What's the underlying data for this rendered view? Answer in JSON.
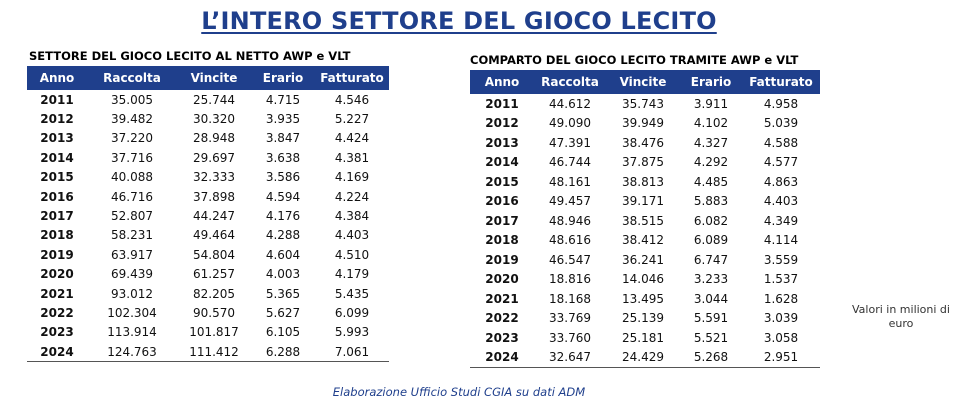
{
  "title": "L’INTERO SETTORE DEL GIOCO LECITO",
  "left_table": {
    "subtitle": "SETTORE DEL GIOCO LECITO AL NETTO AWP e VLT",
    "headers": [
      "Anno",
      "Raccolta",
      "Vincite",
      "Erario",
      "Fatturato"
    ],
    "rows": [
      [
        "2011",
        "35.005",
        "25.744",
        "4.715",
        "4.546"
      ],
      [
        "2012",
        "39.482",
        "30.320",
        "3.935",
        "5.227"
      ],
      [
        "2013",
        "37.220",
        "28.948",
        "3.847",
        "4.424"
      ],
      [
        "2014",
        "37.716",
        "29.697",
        "3.638",
        "4.381"
      ],
      [
        "2015",
        "40.088",
        "32.333",
        "3.586",
        "4.169"
      ],
      [
        "2016",
        "46.716",
        "37.898",
        "4.594",
        "4.224"
      ],
      [
        "2017",
        "52.807",
        "44.247",
        "4.176",
        "4.384"
      ],
      [
        "2018",
        "58.231",
        "49.464",
        "4.288",
        "4.403"
      ],
      [
        "2019",
        "63.917",
        "54.804",
        "4.604",
        "4.510"
      ],
      [
        "2020",
        "69.439",
        "61.257",
        "4.003",
        "4.179"
      ],
      [
        "2021",
        "93.012",
        "82.205",
        "5.365",
        "5.435"
      ],
      [
        "2022",
        "102.304",
        "90.570",
        "5.627",
        "6.099"
      ],
      [
        "2023",
        "113.914",
        "101.817",
        "6.105",
        "5.993"
      ],
      [
        "2024",
        "124.763",
        "111.412",
        "6.288",
        "7.061"
      ]
    ]
  },
  "right_table": {
    "subtitle": "COMPARTO DEL GIOCO LECITO TRAMITE AWP e VLT",
    "headers": [
      "Anno",
      "Raccolta",
      "Vincite",
      "Erario",
      "Fatturato"
    ],
    "rows": [
      [
        "2011",
        "44.612",
        "35.743",
        "3.911",
        "4.958"
      ],
      [
        "2012",
        "49.090",
        "39.949",
        "4.102",
        "5.039"
      ],
      [
        "2013",
        "47.391",
        "38.476",
        "4.327",
        "4.588"
      ],
      [
        "2014",
        "46.744",
        "37.875",
        "4.292",
        "4.577"
      ],
      [
        "2015",
        "48.161",
        "38.813",
        "4.485",
        "4.863"
      ],
      [
        "2016",
        "49.457",
        "39.171",
        "5.883",
        "4.403"
      ],
      [
        "2017",
        "48.946",
        "38.515",
        "6.082",
        "4.349"
      ],
      [
        "2018",
        "48.616",
        "38.412",
        "6.089",
        "4.114"
      ],
      [
        "2019",
        "46.547",
        "36.241",
        "6.747",
        "3.559"
      ],
      [
        "2020",
        "18.816",
        "14.046",
        "3.233",
        "1.537"
      ],
      [
        "2021",
        "18.168",
        "13.495",
        "3.044",
        "1.628"
      ],
      [
        "2022",
        "33.769",
        "25.139",
        "5.591",
        "3.039"
      ],
      [
        "2023",
        "33.760",
        "25.181",
        "5.521",
        "3.058"
      ],
      [
        "2024",
        "32.647",
        "24.429",
        "5.268",
        "2.951"
      ]
    ]
  },
  "note": "Valori in milioni di euro",
  "footer": "Elaborazione Ufficio Studi CGIA su dati ADM"
}
